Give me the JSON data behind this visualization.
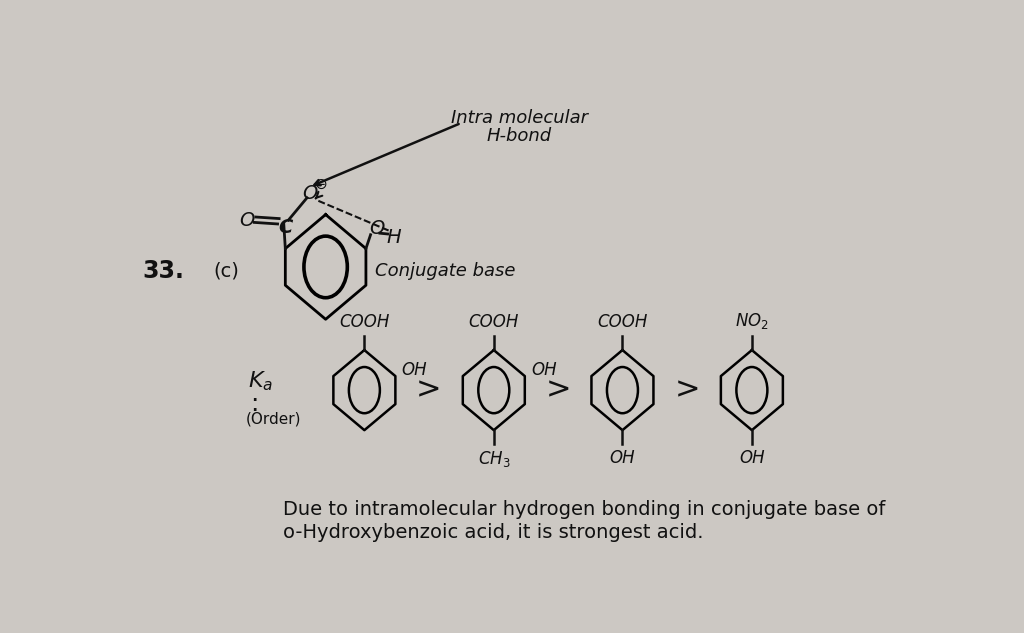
{
  "bg_color": "#ccc8c3",
  "text_color": "#111111",
  "question_number": "33.",
  "answer": "(c)",
  "intra_label_1": "Intra molecular",
  "intra_label_2": "H-bond",
  "conjugate_label": "Conjugate base",
  "ka_label": "$K_a$",
  "order_label": "(Order)",
  "ring1_top": "COOH",
  "ring1_side": "OH",
  "ring2_top": "COOH",
  "ring2_side": "OH",
  "ring2_bot": "$CH_3$",
  "ring3_top": "COOH",
  "ring3_bot": "OH",
  "ring4_top": "$NO_2$",
  "ring4_bot": "OH",
  "bottom_line1": "Due to intramolecular hydrogen bonding in conjugate base of",
  "bottom_line2": "o-Hydroxybenzoic acid, it is strongest acid."
}
